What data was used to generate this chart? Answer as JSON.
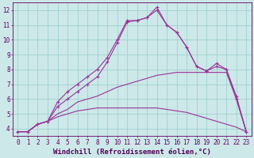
{
  "xlabel": "Windchill (Refroidissement éolien,°C)",
  "bg_color": "#cce8e8",
  "line_color": "#993399",
  "grid_color": "#99cccc",
  "hours": [
    0,
    1,
    2,
    3,
    4,
    5,
    6,
    7,
    8,
    9,
    10,
    11,
    12,
    13,
    14,
    15,
    16,
    17,
    18,
    19,
    20,
    21,
    22,
    23
  ],
  "curve_peak": [
    3.8,
    3.8,
    4.3,
    4.5,
    5.8,
    6.5,
    7.0,
    7.5,
    8.0,
    8.8,
    10.0,
    11.3,
    11.3,
    11.5,
    12.2,
    11.0,
    10.5,
    9.5,
    8.2,
    7.9,
    8.4,
    8.0,
    6.2,
    3.8
  ],
  "curve_alt": [
    3.8,
    3.8,
    4.3,
    4.5,
    5.5,
    6.0,
    6.5,
    7.0,
    7.5,
    8.5,
    9.8,
    11.2,
    11.3,
    11.5,
    12.0,
    11.0,
    10.5,
    9.5,
    8.2,
    7.9,
    8.2,
    8.0,
    6.0,
    3.8
  ],
  "curve_high_flat": [
    3.8,
    3.8,
    4.3,
    4.5,
    5.0,
    5.3,
    5.8,
    6.0,
    6.2,
    6.5,
    6.8,
    7.0,
    7.2,
    7.4,
    7.6,
    7.7,
    7.8,
    7.8,
    7.8,
    7.8,
    7.8,
    7.8,
    6.0,
    3.8
  ],
  "curve_low_flat": [
    3.8,
    3.8,
    4.3,
    4.5,
    4.8,
    5.0,
    5.2,
    5.3,
    5.4,
    5.4,
    5.4,
    5.4,
    5.4,
    5.4,
    5.4,
    5.3,
    5.2,
    5.1,
    4.9,
    4.7,
    4.5,
    4.3,
    4.1,
    3.8
  ],
  "xlim": [
    -0.5,
    23.5
  ],
  "ylim": [
    3.5,
    12.5
  ],
  "yticks": [
    4,
    5,
    6,
    7,
    8,
    9,
    10,
    11,
    12
  ],
  "xticks": [
    0,
    1,
    2,
    3,
    4,
    5,
    6,
    7,
    8,
    9,
    10,
    11,
    12,
    13,
    14,
    15,
    16,
    17,
    18,
    19,
    20,
    21,
    22,
    23
  ],
  "tick_fontsize": 5.5,
  "label_fontsize": 6.5
}
